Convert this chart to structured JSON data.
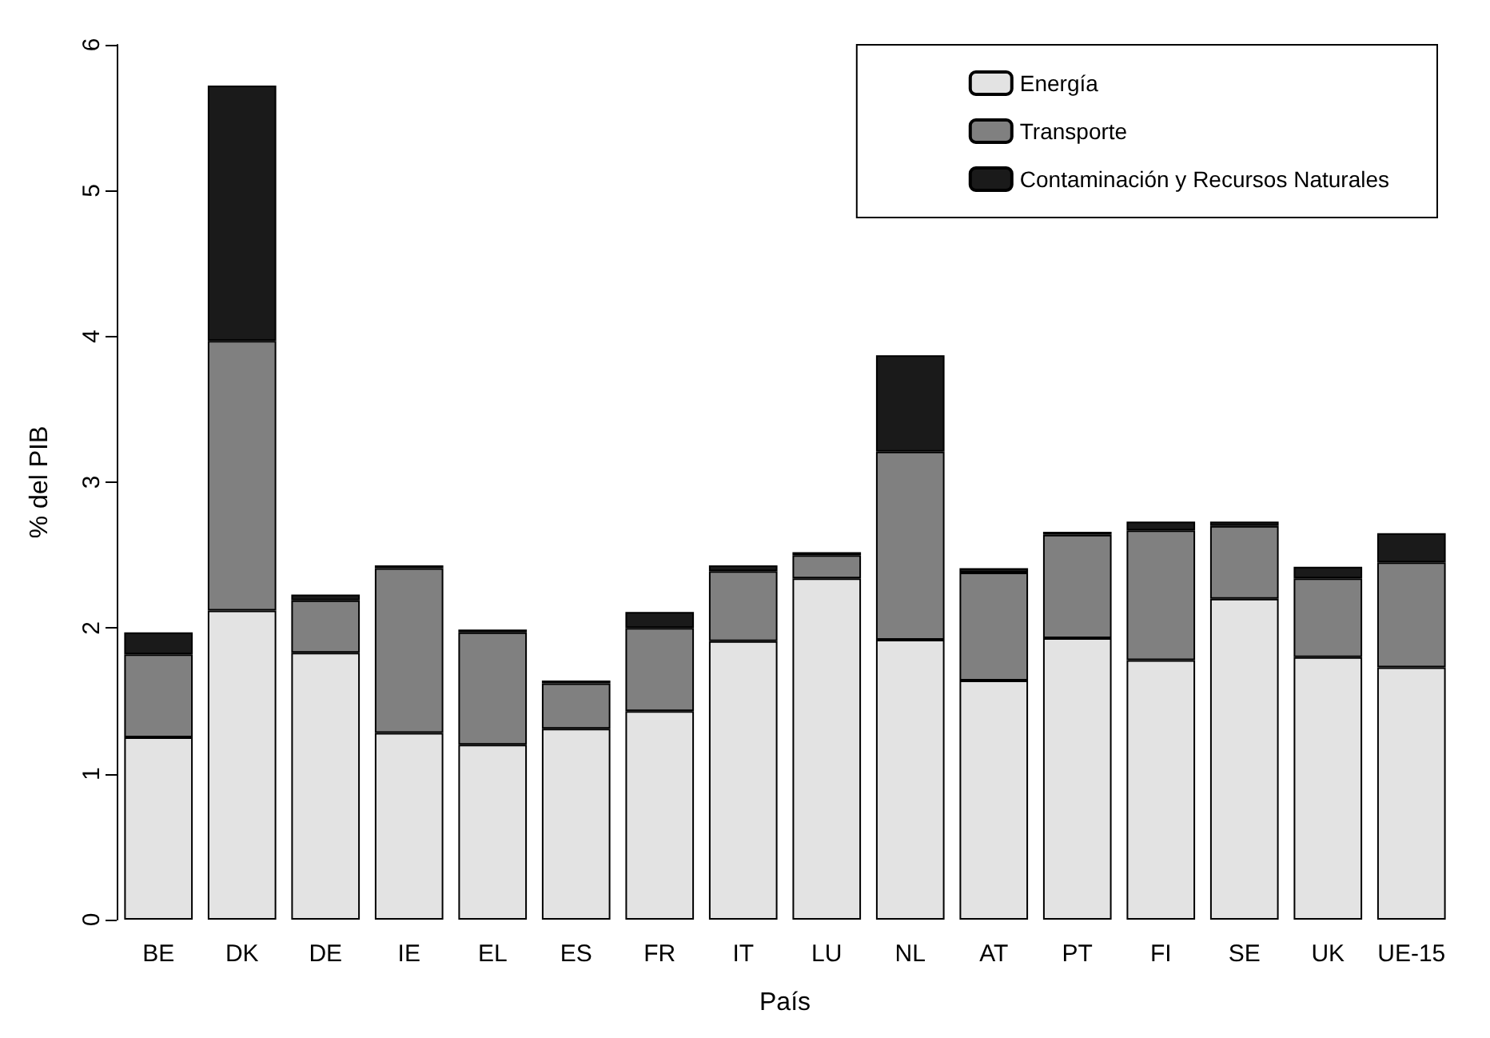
{
  "chart_data": {
    "type": "bar",
    "stacked": true,
    "xlabel": "País",
    "ylabel": "% del PIB",
    "categories": [
      "BE",
      "DK",
      "DE",
      "IE",
      "EL",
      "ES",
      "FR",
      "IT",
      "LU",
      "NL",
      "AT",
      "PT",
      "FI",
      "SE",
      "UK",
      "UE-15"
    ],
    "series": [
      {
        "name": "Energía",
        "color": "#e3e3e3",
        "values": [
          1.25,
          2.12,
          1.83,
          1.28,
          1.2,
          1.31,
          1.43,
          1.91,
          2.34,
          1.92,
          1.64,
          1.93,
          1.78,
          2.2,
          1.8,
          1.73
        ]
      },
      {
        "name": "Transporte",
        "color": "#808080",
        "values": [
          0.57,
          1.85,
          0.36,
          1.13,
          0.77,
          0.31,
          0.57,
          0.48,
          0.16,
          1.29,
          0.74,
          0.71,
          0.89,
          0.5,
          0.54,
          0.72
        ]
      },
      {
        "name": "Contaminación y Recursos Naturales",
        "color": "#1a1a1a",
        "values": [
          0.15,
          1.75,
          0.04,
          0.02,
          0.02,
          0.02,
          0.11,
          0.04,
          0.02,
          0.66,
          0.03,
          0.02,
          0.06,
          0.03,
          0.08,
          0.2
        ]
      }
    ],
    "ylim": [
      0,
      6
    ],
    "yticks": [
      0,
      1,
      2,
      3,
      4,
      5,
      6
    ],
    "grid": false,
    "legend": "top right"
  }
}
